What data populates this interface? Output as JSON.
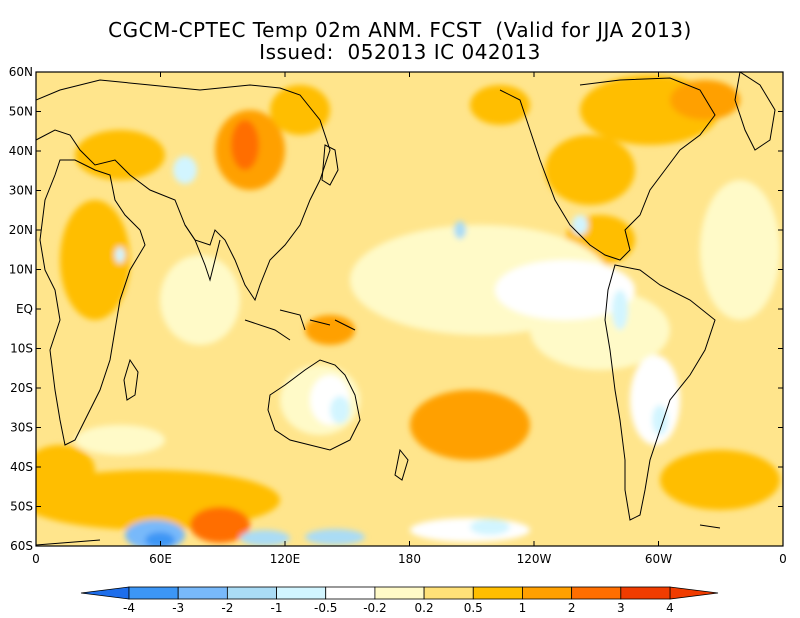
{
  "title": {
    "line1": "CGCM-CPTEC Temp 02m ANM. FCST  (Valid for JJA 2013)",
    "line2": "Issued:  052013 IC 042013"
  },
  "lat_ticks": [
    "60N",
    "50N",
    "40N",
    "30N",
    "20N",
    "10N",
    "EQ",
    "10S",
    "20S",
    "30S",
    "40S",
    "50S",
    "60S"
  ],
  "lon_ticks": [
    "0",
    "60E",
    "120E",
    "180",
    "120W",
    "60W",
    "0"
  ],
  "colorbar": {
    "labels": [
      "-4",
      "-3",
      "-2",
      "-1",
      "-0.5",
      "-0.2",
      "0.2",
      "0.5",
      "1",
      "2",
      "3",
      "4"
    ],
    "colors": [
      "#1e6eeb",
      "#3c96f5",
      "#78b9fa",
      "#aadcf5",
      "#d2f5ff",
      "#ffffff",
      "#fffac8",
      "#ffe178",
      "#ffbe00",
      "#ffa000",
      "#ff6e00",
      "#f03c00"
    ],
    "low_color": "#1e6eeb",
    "high_color": "#f03c00"
  },
  "map": {
    "background_color": "#ffe58c",
    "coast_color": "#000000"
  }
}
